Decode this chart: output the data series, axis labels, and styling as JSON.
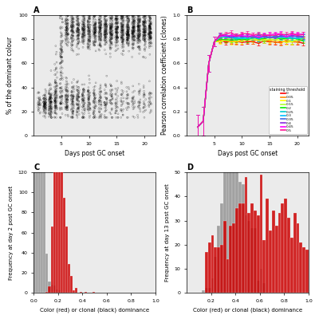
{
  "panel_A": {
    "title": "A",
    "xlabel": "Days post GC onset",
    "ylabel": "% of the dominant colour",
    "days": [
      1,
      2,
      3,
      4,
      5,
      6,
      7,
      8,
      9,
      10,
      11,
      12,
      13,
      14,
      15,
      16,
      17,
      18,
      19,
      20,
      21
    ],
    "ylim": [
      0,
      100
    ],
    "xlim": [
      0,
      22
    ]
  },
  "panel_B": {
    "title": "B",
    "xlabel": "Days post GC onset",
    "ylabel": "Pearson correlation coefficient (clones)",
    "ylim": [
      0.0,
      1.0
    ],
    "xlim": [
      0,
      22
    ],
    "days": [
      2,
      3,
      4,
      5,
      6,
      7,
      8,
      9,
      10,
      11,
      12,
      13,
      14,
      15,
      16,
      17,
      18,
      19,
      20,
      21
    ],
    "thresholds": [
      0,
      0.05,
      0.1,
      0.15,
      0.2,
      0.25,
      0.3,
      0.35,
      0.4,
      0.45,
      0.5
    ],
    "threshold_labels": [
      "0",
      "0.05",
      "0.1",
      "0.15",
      "0.2",
      "0.25",
      "0.3",
      "0.35",
      "0.4",
      "0.45",
      "0.5"
    ],
    "colors": [
      "#FF0000",
      "#FF8C00",
      "#FFFF00",
      "#ADFF2F",
      "#00EE00",
      "#00CDCD",
      "#00BFFF",
      "#4169E1",
      "#8A2BE2",
      "#FF00FF",
      "#FF1493"
    ],
    "legend_title": "staining threshold"
  },
  "panel_C": {
    "title": "C",
    "xlabel": "Color (red) or clonal (black) dominance",
    "ylabel": "Frequency at day 2 post GC onset",
    "xlim": [
      0.0,
      1.0
    ],
    "ylim": [
      0,
      120
    ]
  },
  "panel_D": {
    "title": "D",
    "xlabel": "Color (red) or clonal (black) dominance",
    "ylabel": "Frequency at day 13 post GC onset",
    "xlim": [
      0.0,
      1.0
    ],
    "ylim": [
      0,
      50
    ]
  },
  "bg_color": "#EBEBEB",
  "hist_gray": "#888888",
  "hist_red": "#CC0000"
}
